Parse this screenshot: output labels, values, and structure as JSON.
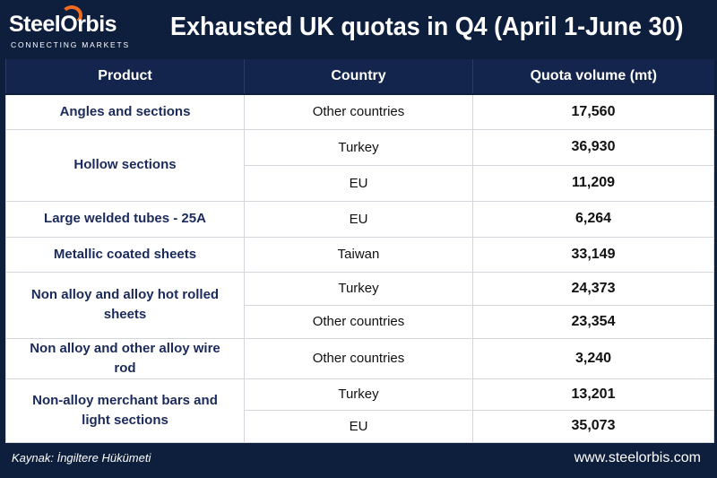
{
  "header": {
    "logo": "SteelOrbis",
    "tagline": "CONNECTING MARKETS",
    "title": "Exhausted UK quotas in Q4 (April 1-June 30)"
  },
  "table": {
    "columns": [
      "Product",
      "Country",
      "Quota volume (mt)"
    ],
    "groups": [
      {
        "product": "Angles and sections",
        "rows": [
          [
            "Other countries",
            "17,560"
          ]
        ]
      },
      {
        "product": "Hollow sections",
        "rows": [
          [
            "Turkey",
            "36,930"
          ],
          [
            "EU",
            "11,209"
          ]
        ]
      },
      {
        "product": "Large welded tubes - 25A",
        "rows": [
          [
            "EU",
            "6,264"
          ]
        ]
      },
      {
        "product": "Metallic coated sheets",
        "rows": [
          [
            "Taiwan",
            "33,149"
          ]
        ]
      },
      {
        "product": "Non alloy and alloy hot rolled sheets",
        "rows": [
          [
            "Turkey",
            "24,373"
          ],
          [
            "Other countries",
            "23,354"
          ]
        ]
      },
      {
        "product": "Non alloy and other alloy wire rod",
        "rows": [
          [
            "Other countries",
            "3,240"
          ]
        ]
      },
      {
        "product": "Non-alloy merchant bars and light sections",
        "rows": [
          [
            "Turkey",
            "13,201"
          ],
          [
            "EU",
            "35,073"
          ]
        ]
      }
    ]
  },
  "footer": {
    "source": "Kaynak: İngiltere Hükümeti",
    "website": "www.steelorbis.com"
  }
}
